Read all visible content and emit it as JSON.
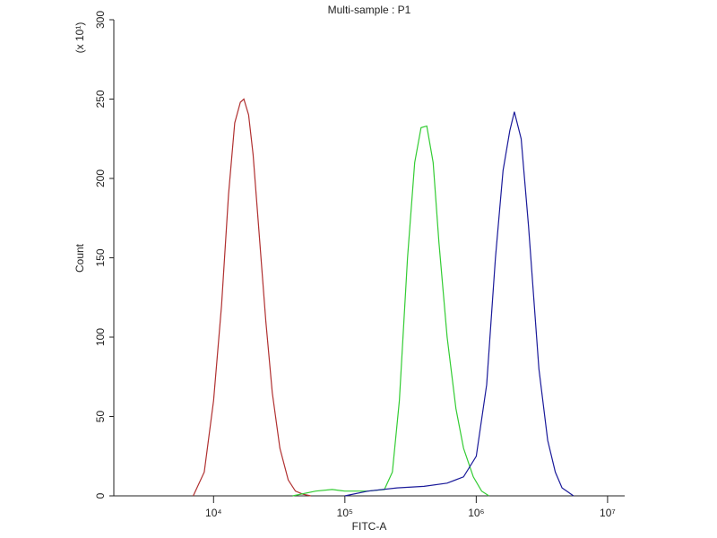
{
  "chart_data": {
    "type": "line",
    "title": "Multi-sample : P1",
    "x_label": "FITC-A",
    "y_label": "Count",
    "y_multiplier": "(x 10¹)",
    "xscale": "log",
    "xlim": [
      1740,
      13500000
    ],
    "xticks": [
      {
        "value": 10000,
        "label": "10⁴"
      },
      {
        "value": 100000,
        "label": "10⁵"
      },
      {
        "value": 1000000,
        "label": "10⁶"
      },
      {
        "value": 10000000,
        "label": "10⁷"
      }
    ],
    "ylim": [
      0,
      300
    ],
    "yticks": [
      0,
      50,
      100,
      150,
      200,
      250,
      300
    ],
    "series": [
      {
        "name": "Red",
        "color": "#b03030",
        "x": [
          7000,
          8500,
          10000,
          11500,
          13000,
          14500,
          16000,
          17000,
          18500,
          20000,
          22000,
          25000,
          28000,
          32000,
          37000,
          42000,
          48000,
          55000
        ],
        "values": [
          0,
          15,
          60,
          120,
          190,
          235,
          248,
          250,
          240,
          215,
          170,
          110,
          65,
          30,
          10,
          3,
          1,
          0
        ]
      },
      {
        "name": "Green",
        "color": "#33cc33",
        "x": [
          40000,
          60000,
          80000,
          100000,
          150000,
          200000,
          230000,
          260000,
          300000,
          340000,
          380000,
          420000,
          470000,
          520000,
          600000,
          700000,
          800000,
          950000,
          1100000,
          1250000
        ],
        "values": [
          0,
          3,
          4,
          3,
          3,
          4,
          15,
          60,
          150,
          210,
          232,
          233,
          210,
          160,
          100,
          55,
          30,
          12,
          3,
          0
        ]
      },
      {
        "name": "Blue",
        "color": "#1a1a9a",
        "x": [
          100000,
          150000,
          250000,
          400000,
          600000,
          800000,
          1000000,
          1200000,
          1400000,
          1600000,
          1800000,
          1950000,
          2200000,
          2500000,
          3000000,
          3500000,
          4000000,
          4500000,
          5500000
        ],
        "values": [
          0,
          3,
          5,
          6,
          8,
          12,
          25,
          70,
          150,
          205,
          230,
          242,
          225,
          170,
          80,
          35,
          15,
          5,
          0
        ]
      }
    ]
  }
}
